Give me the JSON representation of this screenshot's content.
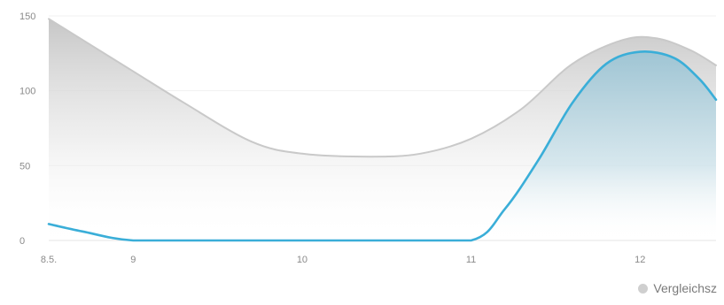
{
  "chart_data": {
    "type": "area",
    "x_tick_labels": [
      "8.5.",
      "9",
      "10",
      "11",
      "12"
    ],
    "x_ticks": [
      8.5,
      9,
      10,
      11,
      12
    ],
    "xlim": [
      8.5,
      12.45
    ],
    "y_ticks": [
      0,
      50,
      100,
      150
    ],
    "ylim": [
      0,
      150
    ],
    "grid": true,
    "legend_position": "bottom-right",
    "series": [
      {
        "name": "Vergleichsz",
        "color": "#c9c9c9",
        "fill": "gray-gradient",
        "x": [
          8.5,
          9.0,
          9.3,
          9.7,
          10.0,
          10.4,
          10.7,
          11.0,
          11.3,
          11.6,
          11.9,
          12.1,
          12.3,
          12.45
        ],
        "y": [
          148,
          113,
          92,
          66,
          58,
          56,
          58,
          68,
          88,
          118,
          134,
          135,
          127,
          117
        ]
      },
      {
        "color": "#3aaed8",
        "fill": "blue-gradient",
        "x": [
          8.5,
          8.7,
          9.0,
          9.5,
          10.0,
          10.5,
          11.0,
          11.2,
          11.4,
          11.6,
          11.8,
          12.0,
          12.2,
          12.35,
          12.45
        ],
        "y": [
          11,
          6,
          0,
          0,
          0,
          0,
          0,
          21,
          54,
          92,
          118,
          126,
          122,
          108,
          94
        ]
      }
    ]
  }
}
